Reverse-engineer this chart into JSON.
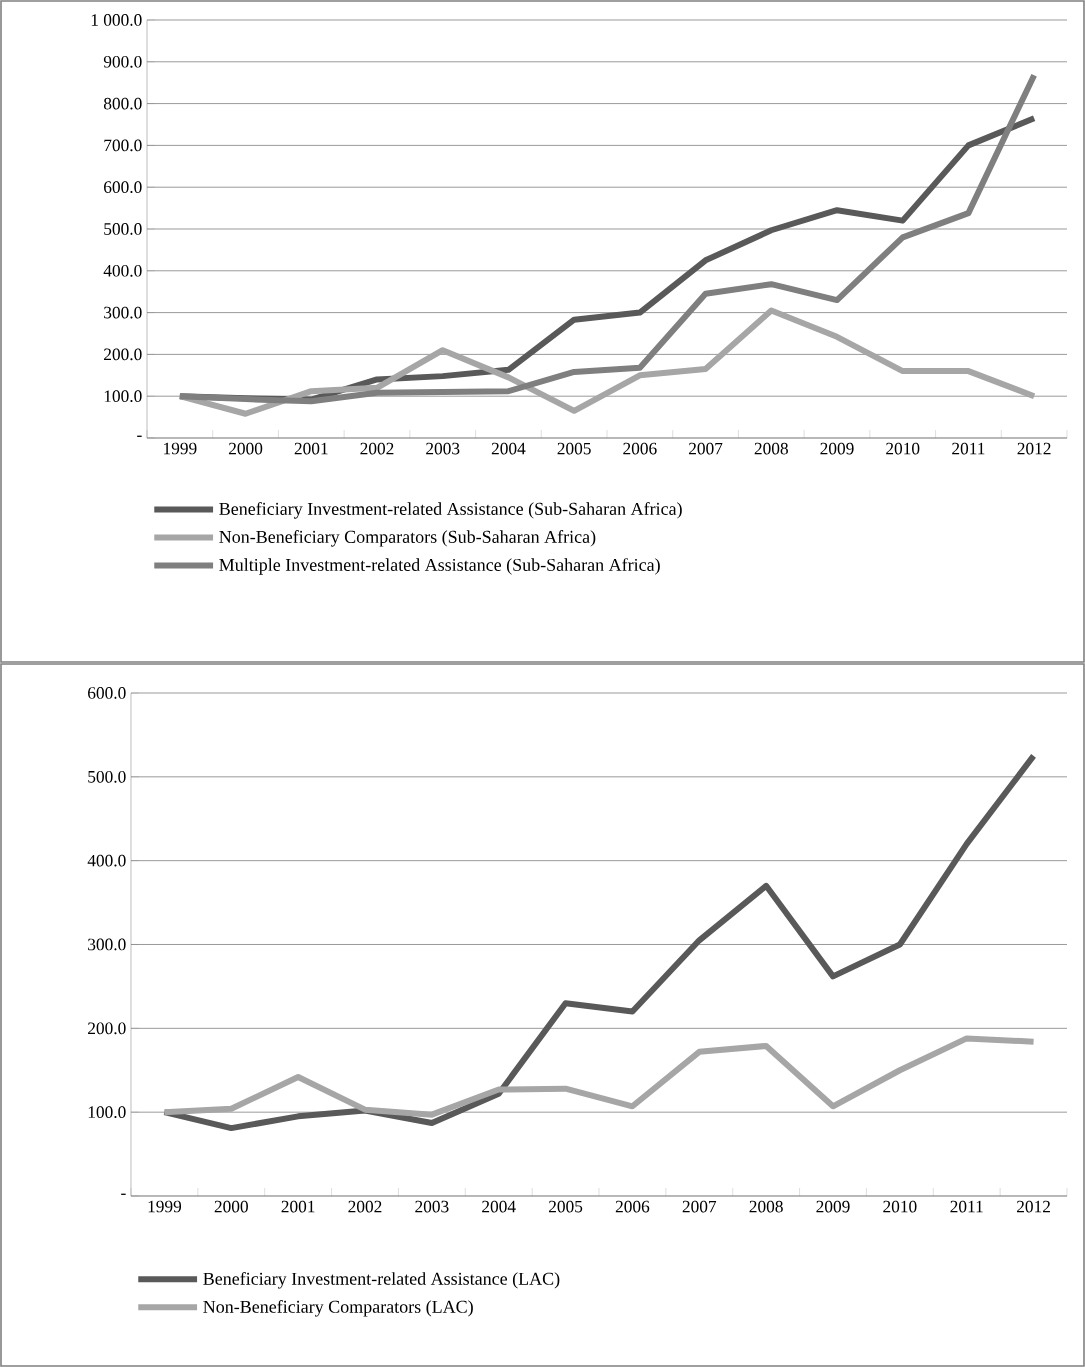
{
  "chart_data": [
    {
      "type": "line",
      "categories": [
        "1999",
        "2000",
        "2001",
        "2002",
        "2003",
        "2004",
        "2005",
        "2006",
        "2007",
        "2008",
        "2009",
        "2010",
        "2011",
        "2012"
      ],
      "series": [
        {
          "name": "Beneficiary Investment-related Assistance (Sub-Saharan Africa)",
          "color": "#595959",
          "values": [
            100,
            95,
            92,
            140,
            148,
            163,
            283,
            300,
            425,
            497,
            545,
            520,
            700,
            765
          ]
        },
        {
          "name": "Non-Beneficiary Comparators (Sub-Saharan Africa)",
          "color": "#a6a6a6",
          "values": [
            100,
            58,
            112,
            120,
            210,
            145,
            65,
            150,
            165,
            305,
            242,
            160,
            160,
            100
          ]
        },
        {
          "name": "Multiple Investment-related  Assistance (Sub-Saharan Africa)",
          "color": "#7f7f7f",
          "values": [
            100,
            93,
            88,
            108,
            110,
            112,
            158,
            168,
            345,
            368,
            330,
            480,
            538,
            868
          ]
        }
      ],
      "ylim": [
        0,
        1000
      ],
      "yticks": [
        {
          "value": 0,
          "label": "-"
        },
        {
          "value": 100,
          "label": "100.0"
        },
        {
          "value": 200,
          "label": "200.0"
        },
        {
          "value": 300,
          "label": "300.0"
        },
        {
          "value": 400,
          "label": "400.0"
        },
        {
          "value": 500,
          "label": "500.0"
        },
        {
          "value": 600,
          "label": "600.0"
        },
        {
          "value": 700,
          "label": "700.0"
        },
        {
          "value": 800,
          "label": "800.0"
        },
        {
          "value": 900,
          "label": "900.0"
        },
        {
          "value": 1000,
          "label": "1 000.0"
        }
      ],
      "grid": "y",
      "legend": "bottom"
    },
    {
      "type": "line",
      "categories": [
        "1999",
        "2000",
        "2001",
        "2002",
        "2003",
        "2004",
        "2005",
        "2006",
        "2007",
        "2008",
        "2009",
        "2010",
        "2011",
        "2012"
      ],
      "series": [
        {
          "name": "Beneficiary Investment-related Assistance (LAC)",
          "color": "#595959",
          "values": [
            100,
            81,
            95,
            102,
            87,
            122,
            230,
            220,
            305,
            370,
            262,
            300,
            420,
            525
          ]
        },
        {
          "name": "Non-Beneficiary Comparators (LAC)",
          "color": "#a6a6a6",
          "values": [
            100,
            104,
            142,
            103,
            97,
            127,
            128,
            107,
            172,
            179,
            107,
            150,
            188,
            184
          ]
        }
      ],
      "ylim": [
        0,
        600
      ],
      "yticks": [
        {
          "value": 0,
          "label": "-"
        },
        {
          "value": 100,
          "label": "100.0"
        },
        {
          "value": 200,
          "label": "200.0"
        },
        {
          "value": 300,
          "label": "300.0"
        },
        {
          "value": 400,
          "label": "400.0"
        },
        {
          "value": 500,
          "label": "500.0"
        },
        {
          "value": 600,
          "label": "600.0"
        }
      ],
      "grid": "y",
      "legend": "bottom"
    }
  ]
}
